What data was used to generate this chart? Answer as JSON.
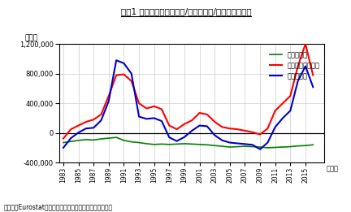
{
  "title": "図表1 ドイツの人口増減数/自然増減数/移民の流出入数",
  "ylabel": "（人）",
  "xlabel_suffix": "（年）",
  "source": "（出所：Eurostatより住友商事グローバルリサーチ作成）",
  "years": [
    1983,
    1984,
    1985,
    1986,
    1987,
    1988,
    1989,
    1990,
    1991,
    1992,
    1993,
    1994,
    1995,
    1996,
    1997,
    1998,
    1999,
    2000,
    2001,
    2002,
    2003,
    2004,
    2005,
    2006,
    2007,
    2008,
    2009,
    2010,
    2011,
    2012,
    2013,
    2014,
    2015,
    2016
  ],
  "natural_increase": [
    -130000,
    -115000,
    -100000,
    -90000,
    -95000,
    -80000,
    -70000,
    -60000,
    -100000,
    -120000,
    -130000,
    -145000,
    -155000,
    -150000,
    -155000,
    -150000,
    -145000,
    -150000,
    -155000,
    -160000,
    -170000,
    -180000,
    -190000,
    -185000,
    -180000,
    -185000,
    -190000,
    -200000,
    -195000,
    -190000,
    -185000,
    -175000,
    -170000,
    -160000
  ],
  "net_migration": [
    -75000,
    50000,
    100000,
    150000,
    180000,
    250000,
    500000,
    780000,
    790000,
    700000,
    400000,
    330000,
    360000,
    320000,
    100000,
    50000,
    120000,
    170000,
    270000,
    250000,
    150000,
    80000,
    60000,
    50000,
    30000,
    10000,
    -20000,
    60000,
    300000,
    400000,
    500000,
    900000,
    1200000,
    780000
  ],
  "population_change": [
    -200000,
    -70000,
    5000,
    60000,
    70000,
    170000,
    430000,
    980000,
    940000,
    800000,
    220000,
    190000,
    200000,
    160000,
    -60000,
    -110000,
    -55000,
    30000,
    100000,
    90000,
    -30000,
    -100000,
    -130000,
    -140000,
    -150000,
    -160000,
    -220000,
    -130000,
    80000,
    200000,
    300000,
    700000,
    900000,
    620000
  ],
  "ylim": [
    -400000,
    1200000
  ],
  "yticks": [
    -400000,
    0,
    400000,
    800000,
    1200000
  ],
  "xticks": [
    1983,
    1985,
    1987,
    1989,
    1991,
    1993,
    1995,
    1997,
    1999,
    2001,
    2003,
    2005,
    2007,
    2009,
    2011,
    2013,
    2015
  ],
  "color_natural": "#008000",
  "color_migration": "#ff0000",
  "color_population": "#0000cc",
  "legend_labels": [
    "自然増減数",
    "移民の純流出入数",
    "人口増減数"
  ],
  "background_color": "#ffffff",
  "grid_color": "#cccccc"
}
